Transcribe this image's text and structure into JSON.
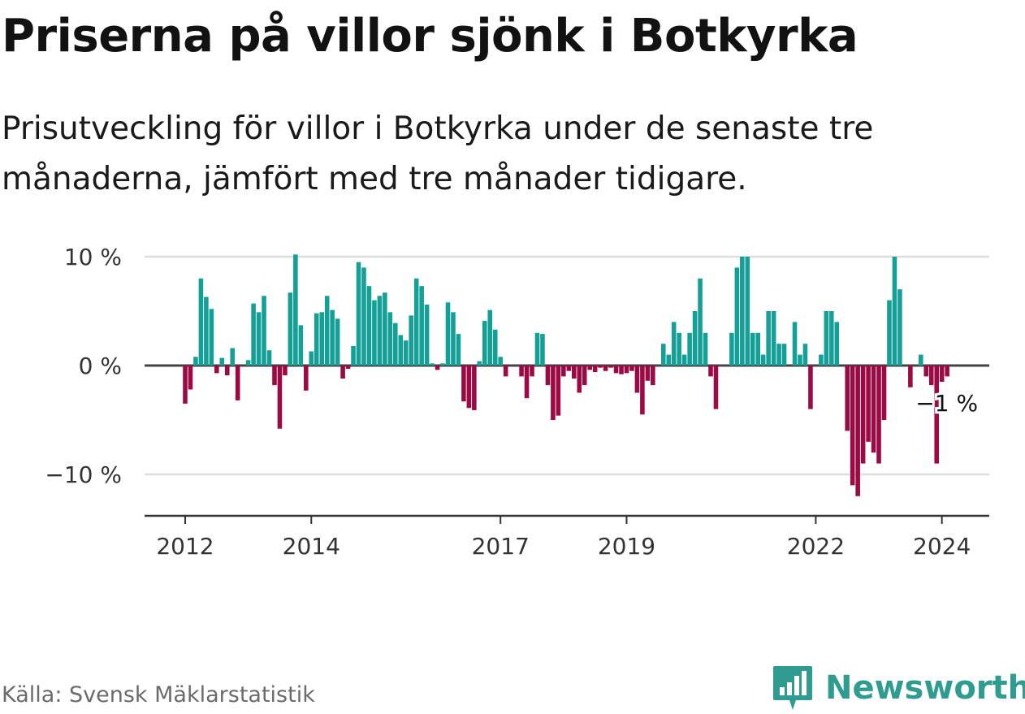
{
  "title": "Priserna på villor sjönk i Botkyrka",
  "subtitle": "Prisutveckling för villor i Botkyrka under de senaste tre månaderna, jämfört med tre månader tidigare.",
  "source": "Källa: Svensk Mäklarstatistik",
  "brand": {
    "name": "Newsworthy",
    "icon": "bar-chart-logo-icon",
    "color": "#2f9c8f"
  },
  "colors": {
    "positive": "#14a096",
    "negative": "#9b0a45",
    "zero_line": "#444444",
    "grid": "#dddddd",
    "axis": "#333333"
  },
  "chart_data": {
    "type": "bar",
    "title": "Priserna på villor sjönk i Botkyrka",
    "xlabel": "",
    "ylabel": "",
    "ylim": [
      -13.5,
      10
    ],
    "y_ticks": [
      10,
      0,
      -10
    ],
    "y_tick_labels": [
      "10 %",
      "0 %",
      "−10 %"
    ],
    "x_ticks": [
      {
        "month_index": 0,
        "label": "2012"
      },
      {
        "month_index": 24,
        "label": "2014"
      },
      {
        "month_index": 60,
        "label": "2017"
      },
      {
        "month_index": 84,
        "label": "2019"
      },
      {
        "month_index": 120,
        "label": "2022"
      },
      {
        "month_index": 144,
        "label": "2024"
      }
    ],
    "start": "2012-01",
    "annotation": {
      "label": "−1 %",
      "month_index": 144
    },
    "values": [
      -3.5,
      -2.2,
      0.8,
      8.0,
      6.3,
      5.2,
      -0.7,
      0.7,
      -0.9,
      1.6,
      -3.2,
      0.0,
      0.5,
      5.7,
      4.9,
      6.4,
      1.4,
      -1.8,
      -5.8,
      -0.9,
      6.7,
      10.2,
      3.7,
      -2.3,
      1.3,
      4.8,
      4.9,
      6.4,
      5.1,
      4.3,
      -1.2,
      -0.3,
      1.8,
      9.5,
      9.0,
      7.3,
      6.0,
      6.4,
      6.7,
      4.9,
      3.9,
      2.8,
      2.3,
      4.6,
      8.0,
      7.3,
      5.6,
      0.2,
      -0.4,
      0.2,
      5.8,
      4.9,
      2.9,
      -3.3,
      -3.9,
      -4.1,
      0.4,
      4.1,
      5.1,
      3.3,
      0.8,
      -1.0,
      0.0,
      0.0,
      -1.0,
      -3.0,
      -1.0,
      3.0,
      2.9,
      -1.8,
      -5.0,
      -4.6,
      -1.0,
      -0.5,
      -1.2,
      -2.5,
      -1.8,
      -0.4,
      -0.6,
      -0.2,
      -0.5,
      -0.2,
      -0.7,
      -0.8,
      -0.7,
      -0.5,
      -2.5,
      -4.5,
      -1.4,
      -1.8,
      0.0,
      2.0,
      1.0,
      4.0,
      3.0,
      1.0,
      3.0,
      5.0,
      8.0,
      3.0,
      -1.0,
      -4.0,
      0.0,
      0.0,
      3.0,
      9.0,
      10.0,
      10.0,
      3.0,
      3.0,
      1.0,
      5.0,
      5.0,
      2.0,
      2.0,
      0.0,
      4.0,
      1.0,
      2.0,
      -4.0,
      0.0,
      1.0,
      5.0,
      5.0,
      4.0,
      0.0,
      -6.0,
      -11.0,
      -12.0,
      -9.0,
      -7.0,
      -8.0,
      -9.0,
      -5.0,
      6.0,
      10.0,
      7.0,
      0.0,
      -2.0,
      0.0,
      1.0,
      -1.0,
      -1.8,
      -9.0,
      -1.5,
      -1.0
    ]
  }
}
